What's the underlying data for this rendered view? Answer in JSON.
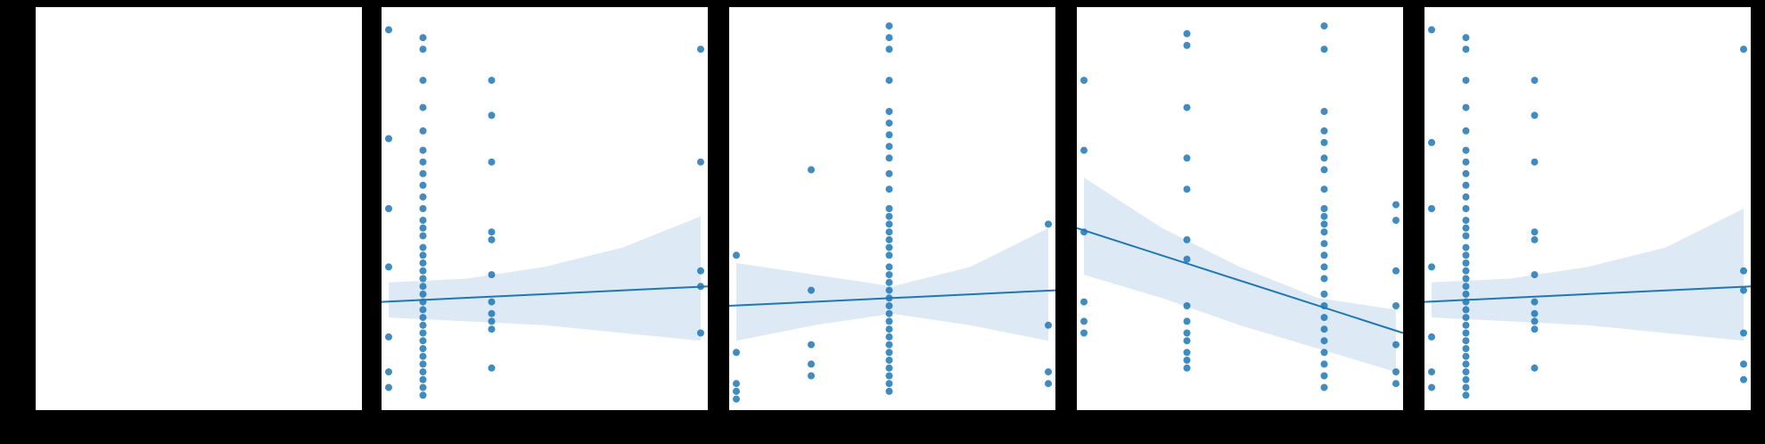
{
  "figure": {
    "background_color": "#000000",
    "panel_color": "#ffffff",
    "point_color": "#1f77b4",
    "line_color": "#1f77b4",
    "band_color": "#c6dbef"
  },
  "chart_data": [
    {
      "type": "scatter",
      "note_shown": "empty panel",
      "points": [],
      "xlim": [
        0,
        1
      ],
      "ylim": [
        0,
        1
      ],
      "grid": false
    },
    {
      "type": "scatter",
      "xlim": [
        0,
        1
      ],
      "ylim": [
        0,
        1
      ],
      "grid": false,
      "fit": {
        "y_left": 0.26,
        "y_right": 0.3
      },
      "band": {
        "x": [
          0,
          0.25,
          0.5,
          0.75,
          1
        ],
        "lower": [
          0.22,
          0.21,
          0.2,
          0.18,
          0.16
        ],
        "upper": [
          0.31,
          0.32,
          0.35,
          0.4,
          0.48
        ]
      },
      "points": [
        [
          0.0,
          0.96
        ],
        [
          0.0,
          0.68
        ],
        [
          0.0,
          0.5
        ],
        [
          0.0,
          0.35
        ],
        [
          0.0,
          0.17
        ],
        [
          0.0,
          0.08
        ],
        [
          0.0,
          0.04
        ],
        [
          0.11,
          0.94
        ],
        [
          0.11,
          0.91
        ],
        [
          0.11,
          0.83
        ],
        [
          0.11,
          0.76
        ],
        [
          0.11,
          0.7
        ],
        [
          0.11,
          0.65
        ],
        [
          0.11,
          0.62
        ],
        [
          0.11,
          0.59
        ],
        [
          0.11,
          0.56
        ],
        [
          0.11,
          0.53
        ],
        [
          0.11,
          0.5
        ],
        [
          0.11,
          0.47
        ],
        [
          0.11,
          0.45
        ],
        [
          0.11,
          0.43
        ],
        [
          0.11,
          0.4
        ],
        [
          0.11,
          0.38
        ],
        [
          0.11,
          0.36
        ],
        [
          0.11,
          0.34
        ],
        [
          0.11,
          0.32
        ],
        [
          0.11,
          0.3
        ],
        [
          0.11,
          0.28
        ],
        [
          0.11,
          0.26
        ],
        [
          0.11,
          0.24
        ],
        [
          0.11,
          0.22
        ],
        [
          0.11,
          0.2
        ],
        [
          0.11,
          0.18
        ],
        [
          0.11,
          0.16
        ],
        [
          0.11,
          0.14
        ],
        [
          0.11,
          0.12
        ],
        [
          0.11,
          0.1
        ],
        [
          0.11,
          0.08
        ],
        [
          0.11,
          0.06
        ],
        [
          0.11,
          0.04
        ],
        [
          0.11,
          0.02
        ],
        [
          0.33,
          0.83
        ],
        [
          0.33,
          0.74
        ],
        [
          0.33,
          0.62
        ],
        [
          0.33,
          0.44
        ],
        [
          0.33,
          0.42
        ],
        [
          0.33,
          0.33
        ],
        [
          0.33,
          0.26
        ],
        [
          0.33,
          0.23
        ],
        [
          0.33,
          0.21
        ],
        [
          0.33,
          0.19
        ],
        [
          0.33,
          0.09
        ],
        [
          1.0,
          0.91
        ],
        [
          1.0,
          0.62
        ],
        [
          1.0,
          0.34
        ],
        [
          1.0,
          0.3
        ],
        [
          1.0,
          0.18
        ]
      ]
    },
    {
      "type": "scatter",
      "xlim": [
        0,
        1
      ],
      "ylim": [
        0,
        1
      ],
      "grid": false,
      "fit": {
        "y_left": 0.25,
        "y_right": 0.29
      },
      "band": {
        "x": [
          0,
          0.25,
          0.5,
          0.75,
          1
        ],
        "lower": [
          0.16,
          0.2,
          0.23,
          0.2,
          0.16
        ],
        "upper": [
          0.36,
          0.33,
          0.3,
          0.35,
          0.45
        ]
      },
      "points": [
        [
          0.0,
          0.38
        ],
        [
          0.0,
          0.13
        ],
        [
          0.0,
          0.05
        ],
        [
          0.0,
          0.03
        ],
        [
          0.0,
          0.01
        ],
        [
          0.24,
          0.6
        ],
        [
          0.24,
          0.29
        ],
        [
          0.24,
          0.15
        ],
        [
          0.24,
          0.1
        ],
        [
          0.24,
          0.07
        ],
        [
          0.49,
          0.97
        ],
        [
          0.49,
          0.94
        ],
        [
          0.49,
          0.91
        ],
        [
          0.49,
          0.83
        ],
        [
          0.49,
          0.75
        ],
        [
          0.49,
          0.72
        ],
        [
          0.49,
          0.69
        ],
        [
          0.49,
          0.66
        ],
        [
          0.49,
          0.63
        ],
        [
          0.49,
          0.59
        ],
        [
          0.49,
          0.55
        ],
        [
          0.49,
          0.5
        ],
        [
          0.49,
          0.48
        ],
        [
          0.49,
          0.46
        ],
        [
          0.49,
          0.44
        ],
        [
          0.49,
          0.42
        ],
        [
          0.49,
          0.4
        ],
        [
          0.49,
          0.38
        ],
        [
          0.49,
          0.35
        ],
        [
          0.49,
          0.33
        ],
        [
          0.49,
          0.31
        ],
        [
          0.49,
          0.29
        ],
        [
          0.49,
          0.27
        ],
        [
          0.49,
          0.25
        ],
        [
          0.49,
          0.23
        ],
        [
          0.49,
          0.21
        ],
        [
          0.49,
          0.19
        ],
        [
          0.49,
          0.17
        ],
        [
          0.49,
          0.15
        ],
        [
          0.49,
          0.13
        ],
        [
          0.49,
          0.11
        ],
        [
          0.49,
          0.09
        ],
        [
          0.49,
          0.07
        ],
        [
          0.49,
          0.05
        ],
        [
          0.49,
          0.03
        ],
        [
          1.0,
          0.46
        ],
        [
          1.0,
          0.2
        ],
        [
          1.0,
          0.08
        ],
        [
          1.0,
          0.05
        ]
      ]
    },
    {
      "type": "scatter",
      "xlim": [
        0,
        1
      ],
      "ylim": [
        0,
        1
      ],
      "grid": false,
      "fit": {
        "y_left": 0.45,
        "y_right": 0.18
      },
      "band": {
        "x": [
          0,
          0.25,
          0.5,
          0.75,
          1
        ],
        "lower": [
          0.33,
          0.27,
          0.2,
          0.14,
          0.08
        ],
        "upper": [
          0.58,
          0.45,
          0.35,
          0.27,
          0.24
        ]
      },
      "points": [
        [
          0.0,
          0.83
        ],
        [
          0.0,
          0.65
        ],
        [
          0.0,
          0.44
        ],
        [
          0.0,
          0.26
        ],
        [
          0.0,
          0.21
        ],
        [
          0.0,
          0.18
        ],
        [
          0.33,
          0.95
        ],
        [
          0.33,
          0.92
        ],
        [
          0.33,
          0.76
        ],
        [
          0.33,
          0.63
        ],
        [
          0.33,
          0.55
        ],
        [
          0.33,
          0.42
        ],
        [
          0.33,
          0.37
        ],
        [
          0.33,
          0.25
        ],
        [
          0.33,
          0.21
        ],
        [
          0.33,
          0.18
        ],
        [
          0.33,
          0.16
        ],
        [
          0.33,
          0.13
        ],
        [
          0.33,
          0.11
        ],
        [
          0.33,
          0.09
        ],
        [
          0.77,
          0.97
        ],
        [
          0.77,
          0.91
        ],
        [
          0.77,
          0.75
        ],
        [
          0.77,
          0.7
        ],
        [
          0.77,
          0.67
        ],
        [
          0.77,
          0.63
        ],
        [
          0.77,
          0.6
        ],
        [
          0.77,
          0.55
        ],
        [
          0.77,
          0.5
        ],
        [
          0.77,
          0.48
        ],
        [
          0.77,
          0.46
        ],
        [
          0.77,
          0.44
        ],
        [
          0.77,
          0.41
        ],
        [
          0.77,
          0.38
        ],
        [
          0.77,
          0.35
        ],
        [
          0.77,
          0.32
        ],
        [
          0.77,
          0.28
        ],
        [
          0.77,
          0.25
        ],
        [
          0.77,
          0.22
        ],
        [
          0.77,
          0.19
        ],
        [
          0.77,
          0.16
        ],
        [
          0.77,
          0.13
        ],
        [
          0.77,
          0.1
        ],
        [
          0.77,
          0.07
        ],
        [
          0.77,
          0.04
        ],
        [
          1.0,
          0.51
        ],
        [
          1.0,
          0.47
        ],
        [
          1.0,
          0.34
        ],
        [
          1.0,
          0.25
        ],
        [
          1.0,
          0.15
        ],
        [
          1.0,
          0.08
        ],
        [
          1.0,
          0.05
        ]
      ]
    },
    {
      "type": "scatter",
      "xlim": [
        0,
        1
      ],
      "ylim": [
        0,
        1
      ],
      "grid": false,
      "fit": {
        "y_left": 0.26,
        "y_right": 0.3
      },
      "band": {
        "x": [
          0,
          0.25,
          0.5,
          0.75,
          1
        ],
        "lower": [
          0.22,
          0.21,
          0.2,
          0.18,
          0.16
        ],
        "upper": [
          0.31,
          0.32,
          0.35,
          0.4,
          0.5
        ]
      },
      "points": [
        [
          0.0,
          0.96
        ],
        [
          0.0,
          0.67
        ],
        [
          0.0,
          0.5
        ],
        [
          0.0,
          0.35
        ],
        [
          0.0,
          0.17
        ],
        [
          0.0,
          0.08
        ],
        [
          0.0,
          0.04
        ],
        [
          0.11,
          0.94
        ],
        [
          0.11,
          0.91
        ],
        [
          0.11,
          0.83
        ],
        [
          0.11,
          0.76
        ],
        [
          0.11,
          0.7
        ],
        [
          0.11,
          0.65
        ],
        [
          0.11,
          0.62
        ],
        [
          0.11,
          0.59
        ],
        [
          0.11,
          0.56
        ],
        [
          0.11,
          0.53
        ],
        [
          0.11,
          0.5
        ],
        [
          0.11,
          0.47
        ],
        [
          0.11,
          0.45
        ],
        [
          0.11,
          0.43
        ],
        [
          0.11,
          0.4
        ],
        [
          0.11,
          0.38
        ],
        [
          0.11,
          0.36
        ],
        [
          0.11,
          0.34
        ],
        [
          0.11,
          0.32
        ],
        [
          0.11,
          0.3
        ],
        [
          0.11,
          0.28
        ],
        [
          0.11,
          0.26
        ],
        [
          0.11,
          0.24
        ],
        [
          0.11,
          0.22
        ],
        [
          0.11,
          0.2
        ],
        [
          0.11,
          0.18
        ],
        [
          0.11,
          0.16
        ],
        [
          0.11,
          0.14
        ],
        [
          0.11,
          0.12
        ],
        [
          0.11,
          0.1
        ],
        [
          0.11,
          0.08
        ],
        [
          0.11,
          0.06
        ],
        [
          0.11,
          0.04
        ],
        [
          0.11,
          0.02
        ],
        [
          0.33,
          0.83
        ],
        [
          0.33,
          0.74
        ],
        [
          0.33,
          0.62
        ],
        [
          0.33,
          0.44
        ],
        [
          0.33,
          0.42
        ],
        [
          0.33,
          0.33
        ],
        [
          0.33,
          0.26
        ],
        [
          0.33,
          0.23
        ],
        [
          0.33,
          0.21
        ],
        [
          0.33,
          0.19
        ],
        [
          0.33,
          0.09
        ],
        [
          1.0,
          0.91
        ],
        [
          1.0,
          0.34
        ],
        [
          1.0,
          0.29
        ],
        [
          1.0,
          0.18
        ],
        [
          1.0,
          0.1
        ],
        [
          1.0,
          0.06
        ]
      ]
    }
  ]
}
